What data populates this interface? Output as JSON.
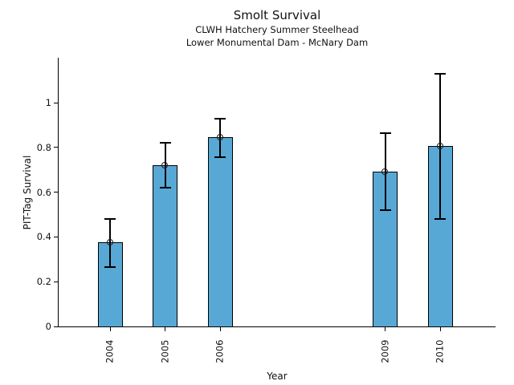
{
  "chart_data": {
    "type": "bar",
    "title": "Smolt Survival",
    "subtitle": [
      "CLWH Hatchery Summer Steelhead",
      "Lower Monumental Dam - McNary Dam"
    ],
    "xlabel": "Year",
    "ylabel": "PIT-Tag Survival",
    "categories": [
      "2004",
      "2005",
      "2006",
      "2009",
      "2010"
    ],
    "x": [
      2004,
      2005,
      2006,
      2009,
      2010
    ],
    "values": [
      0.375,
      0.72,
      0.845,
      0.69,
      0.805
    ],
    "error_low": [
      0.265,
      0.62,
      0.755,
      0.52,
      0.48
    ],
    "error_high": [
      0.48,
      0.82,
      0.93,
      0.865,
      1.13
    ],
    "yticks": [
      0,
      0.2,
      0.4,
      0.6,
      0.8,
      1
    ],
    "ytick_labels": [
      "0",
      "0.2",
      "0.4",
      "0.6",
      "0.8",
      "1"
    ],
    "ylim": [
      0,
      1.2
    ],
    "xlim": [
      2003.1,
      2011.0
    ],
    "grid": false,
    "legend": null,
    "bar_color": "#58A8D5",
    "bar_edge_color": "#000000",
    "error_bar_color": "#000000",
    "marker": "open-circle"
  }
}
